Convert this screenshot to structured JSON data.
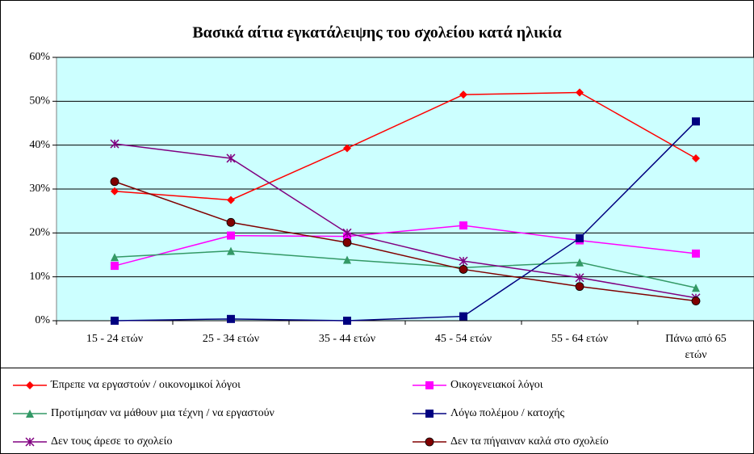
{
  "chart_data": {
    "type": "line",
    "title": "Βασικά αίτια εγκατάλειψης του σχολείου κατά ηλικία",
    "categories": [
      "15 - 24 ετών",
      "25 - 34 ετών",
      "35 - 44 ετών",
      "45 - 54 ετών",
      "55 - 64 ετών",
      "Πάνω από 65 ετών"
    ],
    "ylim": [
      0,
      60
    ],
    "yticks": [
      {
        "value": 0,
        "label": "0%"
      },
      {
        "value": 10,
        "label": "10%"
      },
      {
        "value": 20,
        "label": "20%"
      },
      {
        "value": 30,
        "label": "30%"
      },
      {
        "value": 40,
        "label": "40%"
      },
      {
        "value": 50,
        "label": "50%"
      },
      {
        "value": 60,
        "label": "60%"
      }
    ],
    "grid": true,
    "background": "#ccffff",
    "legend": "bottom",
    "series": [
      {
        "name": "Έπρεπε να εργαστούν / οικονομικοί λόγοι",
        "color": "#ff0000",
        "marker": "diamond",
        "values": [
          29.5,
          27.5,
          39.3,
          51.5,
          52,
          37
        ]
      },
      {
        "name": "Οικογενειακοί λόγοι",
        "color": "#ff00ff",
        "marker": "square",
        "values": [
          12.5,
          19.4,
          19.2,
          21.7,
          18.3,
          15.3
        ]
      },
      {
        "name": "Προτίμησαν να μάθουν μια τέχνη / να εργαστούν",
        "color": "#339966",
        "marker": "triangle",
        "values": [
          14.5,
          15.9,
          13.9,
          12.1,
          13.3,
          7.5
        ]
      },
      {
        "name": "Λόγω πολέμου / κατοχής",
        "color": "#000080",
        "marker": "square",
        "values": [
          0,
          0.4,
          0,
          1,
          18.8,
          45.4
        ]
      },
      {
        "name": "Δεν τους άρεσε το σχολείο",
        "color": "#800080",
        "marker": "star",
        "values": [
          40.3,
          37,
          20,
          13.6,
          9.8,
          5.2
        ]
      },
      {
        "name": "Δεν τα πήγαιναν καλά στο σχολείο",
        "color": "#800000",
        "marker": "circle",
        "values": [
          31.7,
          22.4,
          17.8,
          11.7,
          7.8,
          4.5
        ]
      }
    ]
  }
}
